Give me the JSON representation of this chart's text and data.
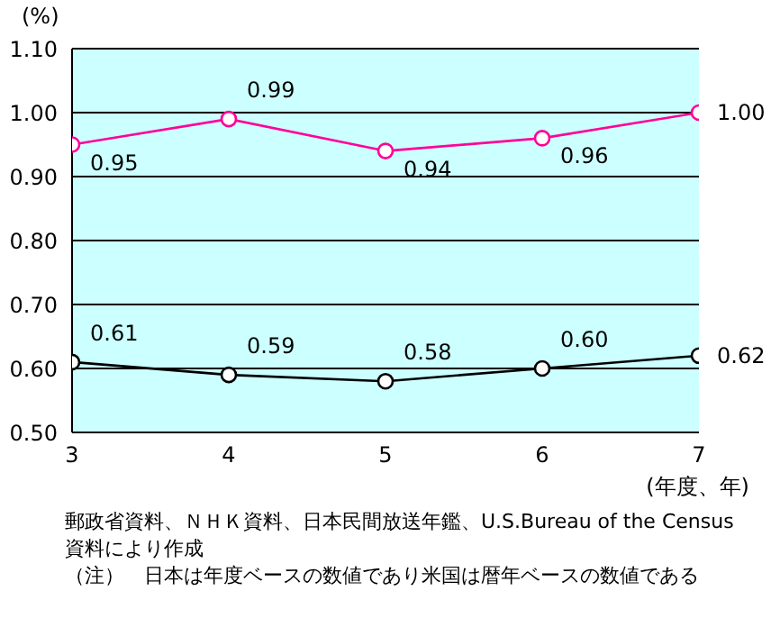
{
  "chart_data": {
    "type": "line",
    "ylabel": "(%)",
    "xlabel": "(年度、年)",
    "x": [
      3,
      4,
      5,
      6,
      7
    ],
    "xlim": [
      3,
      7
    ],
    "xticks": [
      3,
      4,
      5,
      6,
      7
    ],
    "ylim": [
      0.5,
      1.1
    ],
    "yticks": [
      {
        "value": 0.5,
        "label": "0.50"
      },
      {
        "value": 0.6,
        "label": "0.60"
      },
      {
        "value": 0.7,
        "label": "0.70"
      },
      {
        "value": 0.8,
        "label": "0.80"
      },
      {
        "value": 0.9,
        "label": "0.90"
      },
      {
        "value": 1.0,
        "label": "1.00"
      },
      {
        "value": 1.1,
        "label": "1.10"
      }
    ],
    "series": [
      {
        "color": "#ff0099",
        "values": [
          0.95,
          0.99,
          0.94,
          0.96,
          1.0
        ],
        "value_labels": [
          "0.95",
          "0.99",
          "0.94",
          "0.96",
          "1.00"
        ]
      },
      {
        "color": "#000000",
        "values": [
          0.61,
          0.59,
          0.58,
          0.6,
          0.62
        ],
        "value_labels": [
          "0.61",
          "0.59",
          "0.58",
          "0.60",
          "0.62"
        ]
      }
    ],
    "grid": "y",
    "marker": "circle",
    "line_style": "solid",
    "annotations": [
      "郵政省資料、ＮＨＫ資料、日本民間放送年鑑、U.S.Bureau of the Census資料により作成",
      "（注）　日本は年度ベースの数値であり米国は暦年ベースの数値である"
    ]
  }
}
